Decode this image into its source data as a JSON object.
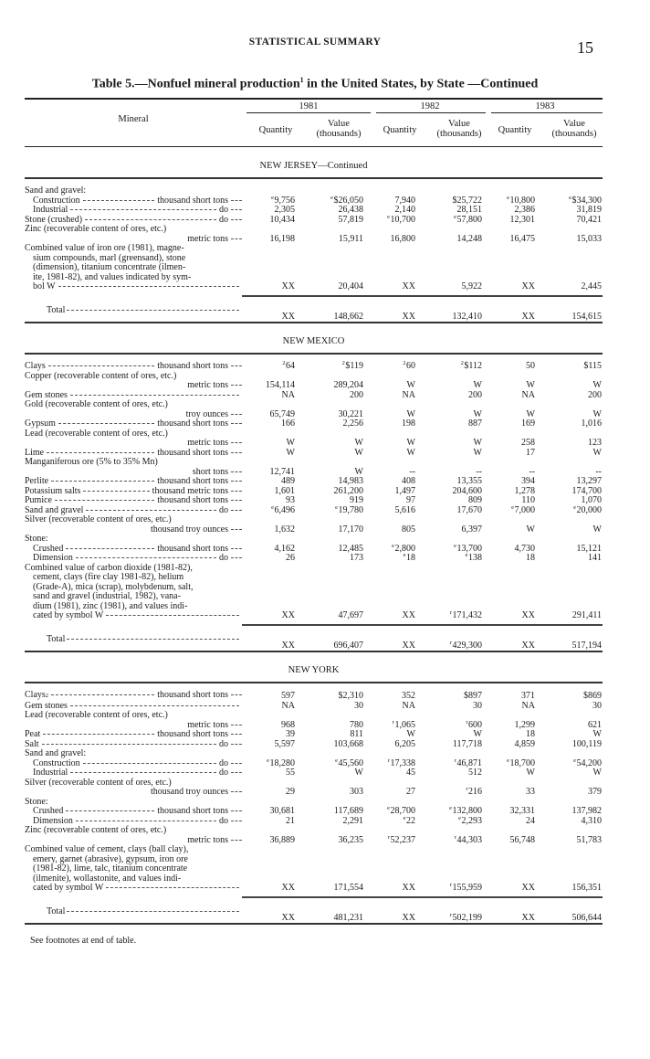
{
  "running_head": "STATISTICAL SUMMARY",
  "page_number": "15",
  "title": {
    "pre": "Table 5.—Nonfuel mineral production",
    "note": "1",
    "post": " in the United States, by State —Continued"
  },
  "columns": {
    "mineral": "Mineral",
    "years": [
      "1981",
      "1982",
      "1983"
    ],
    "quantity": "Quantity",
    "value_line1": "Value",
    "value_line2": "(thousands)"
  },
  "sections": [
    {
      "title": "NEW JERSEY—Continued",
      "rows": [
        {
          "name": "Sand and gravel:",
          "values": []
        },
        {
          "name": "Construction",
          "indent": true,
          "unit": "thousand short tons",
          "values": [
            {
              "n": "e",
              "v": "9,756"
            },
            {
              "n": "e",
              "v": "$26,050"
            },
            "7,940",
            "$25,722",
            {
              "n": "e",
              "v": "10,800"
            },
            {
              "n": "e",
              "v": "$34,300"
            }
          ]
        },
        {
          "name": "Industrial",
          "indent": true,
          "unit": "do",
          "values": [
            "2,305",
            "26,438",
            "2,140",
            "28,151",
            "2,386",
            "31,819"
          ]
        },
        {
          "name": "Stone (crushed)",
          "unit": "do",
          "values": [
            "10,434",
            "57,819",
            {
              "n": "e",
              "v": "10,700"
            },
            {
              "n": "e",
              "v": "57,800"
            },
            "12,301",
            "70,421"
          ]
        },
        {
          "pre": [
            "Zinc (recoverable content of ores, etc.)"
          ],
          "name": "",
          "unit": "metric tons",
          "values": [
            "16,198",
            "15,911",
            "16,800",
            "14,248",
            "16,475",
            "15,033"
          ]
        },
        {
          "pre": [
            "Combined value of iron ore (1981), magne-",
            "sium compounds, marl (greensand), stone",
            "(dimension), titanium concentrate (ilmen-",
            "ite, 1981-82), and values indicated by sym-"
          ],
          "name": "bol W",
          "values": [
            "XX",
            "20,404",
            "XX",
            "5,922",
            "XX",
            "2,445"
          ]
        },
        {
          "name": "Total",
          "total": true,
          "values": [
            "XX",
            "148,662",
            "XX",
            "132,410",
            "XX",
            "154,615"
          ]
        }
      ]
    },
    {
      "title": "NEW MEXICO",
      "rows": [
        {
          "name": "Clays",
          "unit": "thousand short tons",
          "values": [
            {
              "n": "2",
              "v": "64"
            },
            {
              "n": "2",
              "v": "$119"
            },
            {
              "n": "2",
              "v": "60"
            },
            {
              "n": "2",
              "v": "$112"
            },
            "50",
            "$115"
          ]
        },
        {
          "pre": [
            "Copper (recoverable content of ores, etc.)"
          ],
          "name": "",
          "unit": "metric tons",
          "values": [
            "154,114",
            "289,204",
            "W",
            "W",
            "W",
            "W"
          ]
        },
        {
          "name": "Gem stones",
          "values": [
            "NA",
            "200",
            "NA",
            "200",
            "NA",
            "200"
          ]
        },
        {
          "pre": [
            "Gold (recoverable content of ores, etc.)"
          ],
          "name": "",
          "unit": "troy ounces",
          "values": [
            "65,749",
            "30,221",
            "W",
            "W",
            "W",
            "W"
          ]
        },
        {
          "name": "Gypsum",
          "unit": "thousand short tons",
          "values": [
            "166",
            "2,256",
            "198",
            "887",
            "169",
            "1,016"
          ]
        },
        {
          "pre": [
            "Lead (recoverable content of ores, etc.)"
          ],
          "name": "",
          "unit": "metric tons",
          "values": [
            "W",
            "W",
            "W",
            "W",
            "258",
            "123"
          ]
        },
        {
          "name": "Lime",
          "unit": "thousand short tons",
          "values": [
            "W",
            "W",
            "W",
            "W",
            "17",
            "W"
          ]
        },
        {
          "pre": [
            "Manganiferous ore (5% to 35% Mn)"
          ],
          "name": "",
          "unit": "short tons",
          "values": [
            "12,741",
            "W",
            "--",
            "--",
            "--",
            "--"
          ]
        },
        {
          "name": "Perlite",
          "unit": "thousand short tons",
          "values": [
            "489",
            "14,983",
            "408",
            "13,355",
            "394",
            "13,297"
          ]
        },
        {
          "name": "Potassium salts",
          "unit": "thousand metric tons",
          "values": [
            "1,601",
            "261,200",
            "1,497",
            "204,600",
            "1,278",
            "174,700"
          ]
        },
        {
          "name": "Pumice",
          "unit": "thousand short tons",
          "values": [
            "93",
            "919",
            "97",
            "809",
            "110",
            "1,070"
          ]
        },
        {
          "name": "Sand and gravel",
          "unit": "do",
          "values": [
            {
              "n": "e",
              "v": "6,496"
            },
            {
              "n": "e",
              "v": "19,780"
            },
            "5,616",
            "17,670",
            {
              "n": "e",
              "v": "7,000"
            },
            {
              "n": "e",
              "v": "20,000"
            }
          ]
        },
        {
          "pre": [
            "Silver (recoverable content of ores, etc.)"
          ],
          "name": "",
          "unit": "thousand troy ounces",
          "values": [
            "1,632",
            "17,170",
            "805",
            "6,397",
            "W",
            "W"
          ]
        },
        {
          "name": "Stone:",
          "values": []
        },
        {
          "name": "Crushed",
          "indent": true,
          "unit": "thousand short tons",
          "values": [
            "4,162",
            "12,485",
            {
              "n": "e",
              "v": "2,800"
            },
            {
              "n": "e",
              "v": "13,700"
            },
            "4,730",
            "15,121"
          ]
        },
        {
          "name": "Dimension",
          "indent": true,
          "unit": "do",
          "values": [
            "26",
            "173",
            {
              "n": "e",
              "v": "18"
            },
            {
              "n": "e",
              "v": "138"
            },
            "18",
            "141"
          ]
        },
        {
          "pre": [
            "Combined value of carbon dioxide (1981-82),",
            "cement, clays (fire clay 1981-82), helium",
            "(Grade-A), mica (scrap), molybdenum, salt,",
            "sand and gravel (industrial, 1982), vana-",
            "dium (1981), zinc (1981), and values indi-"
          ],
          "name": "cated by symbol W",
          "values": [
            "XX",
            "47,697",
            "XX",
            {
              "n": "r",
              "v": "171,432"
            },
            "XX",
            "291,411"
          ]
        },
        {
          "name": "Total",
          "total": true,
          "values": [
            "XX",
            "696,407",
            "XX",
            {
              "n": "r",
              "v": "429,300"
            },
            "XX",
            "517,194"
          ]
        }
      ]
    },
    {
      "title": "NEW YORK",
      "rows": [
        {
          "name": "Clays",
          "name_note": "2",
          "unit": "thousand short tons",
          "values": [
            "597",
            "$2,310",
            "352",
            "$897",
            "371",
            "$869"
          ]
        },
        {
          "name": "Gem stones",
          "values": [
            "NA",
            "30",
            "NA",
            "30",
            "NA",
            "30"
          ]
        },
        {
          "pre": [
            "Lead (recoverable content of ores, etc.)"
          ],
          "name": "",
          "unit": "metric tons",
          "values": [
            "968",
            "780",
            {
              "n": "r",
              "v": "1,065"
            },
            {
              "n": "r",
              "v": "600"
            },
            "1,299",
            "621"
          ]
        },
        {
          "name": "Peat",
          "unit": "thousand short tons",
          "values": [
            "39",
            "811",
            "W",
            "W",
            "18",
            "W"
          ]
        },
        {
          "name": "Salt",
          "unit": "do",
          "values": [
            "5,597",
            "103,668",
            "6,205",
            "117,718",
            "4,859",
            "100,119"
          ]
        },
        {
          "name": "Sand and gravel:",
          "values": []
        },
        {
          "name": "Construction",
          "indent": true,
          "unit": "do",
          "values": [
            {
              "n": "e",
              "v": "18,280"
            },
            {
              "n": "e",
              "v": "45,560"
            },
            {
              "n": "r",
              "v": "17,338"
            },
            {
              "n": "r",
              "v": "46,871"
            },
            {
              "n": "e",
              "v": "18,700"
            },
            {
              "n": "e",
              "v": "54,200"
            }
          ]
        },
        {
          "name": "Industrial",
          "indent": true,
          "unit": "do",
          "values": [
            "55",
            "W",
            "45",
            "512",
            "W",
            "W"
          ]
        },
        {
          "pre": [
            "Silver (recoverable content of ores, etc.)"
          ],
          "name": "",
          "unit": "thousand troy ounces",
          "values": [
            "29",
            "303",
            "27",
            {
              "n": "r",
              "v": "216"
            },
            "33",
            "379"
          ]
        },
        {
          "name": "Stone:",
          "values": []
        },
        {
          "name": "Crushed",
          "indent": true,
          "unit": "thousand short tons",
          "values": [
            "30,681",
            "117,689",
            {
              "n": "e",
              "v": "28,700"
            },
            {
              "n": "e",
              "v": "132,800"
            },
            "32,331",
            "137,982"
          ]
        },
        {
          "name": "Dimension",
          "indent": true,
          "unit": "do",
          "values": [
            "21",
            "2,291",
            {
              "n": "e",
              "v": "22"
            },
            {
              "n": "e",
              "v": "2,293"
            },
            "24",
            "4,310"
          ]
        },
        {
          "pre": [
            "Zinc (recoverable content of ores, etc.)"
          ],
          "name": "",
          "unit": "metric tons",
          "values": [
            "36,889",
            "36,235",
            {
              "n": "r",
              "v": "52,237"
            },
            {
              "n": "r",
              "v": "44,303"
            },
            "56,748",
            "51,783"
          ]
        },
        {
          "pre": [
            "Combined value of cement, clays (ball clay),",
            "emery, garnet (abrasive), gypsum, iron ore",
            "(1981-82), lime, talc, titanium concentrate",
            "(ilmenite), wollastonite, and values indi-"
          ],
          "name": "cated by symbol W",
          "values": [
            "XX",
            "171,554",
            "XX",
            {
              "n": "r",
              "v": "155,959"
            },
            "XX",
            "156,351"
          ]
        },
        {
          "name": "Total",
          "total": true,
          "values": [
            "XX",
            "481,231",
            "XX",
            {
              "n": "r",
              "v": "502,199"
            },
            "XX",
            "506,644"
          ]
        }
      ]
    }
  ],
  "footer": "See footnotes at end of table."
}
